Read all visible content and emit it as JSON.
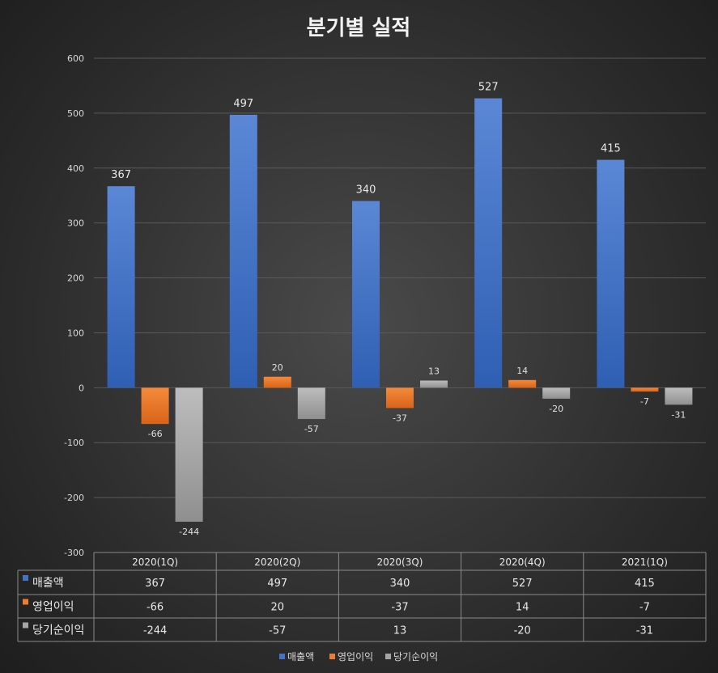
{
  "chart_data": {
    "type": "bar",
    "title": "분기별 실적",
    "categories": [
      "2020(1Q)",
      "2020(2Q)",
      "2020(3Q)",
      "2020(4Q)",
      "2021(1Q)"
    ],
    "series": [
      {
        "name": "매출액",
        "values": [
          367,
          497,
          340,
          527,
          415
        ],
        "color": "#4472c4"
      },
      {
        "name": "영업이익",
        "values": [
          -66,
          20,
          -37,
          14,
          -7
        ],
        "color": "#ed7d31"
      },
      {
        "name": "당기순이익",
        "values": [
          -244,
          -57,
          13,
          -20,
          -31
        ],
        "color": "#a5a5a5"
      }
    ],
    "ylim": [
      -300,
      600
    ],
    "yticks": [
      600,
      500,
      400,
      300,
      200,
      100,
      0,
      -100,
      -200,
      -300
    ],
    "grid": true,
    "data_table": true,
    "legend_position": "bottom"
  }
}
